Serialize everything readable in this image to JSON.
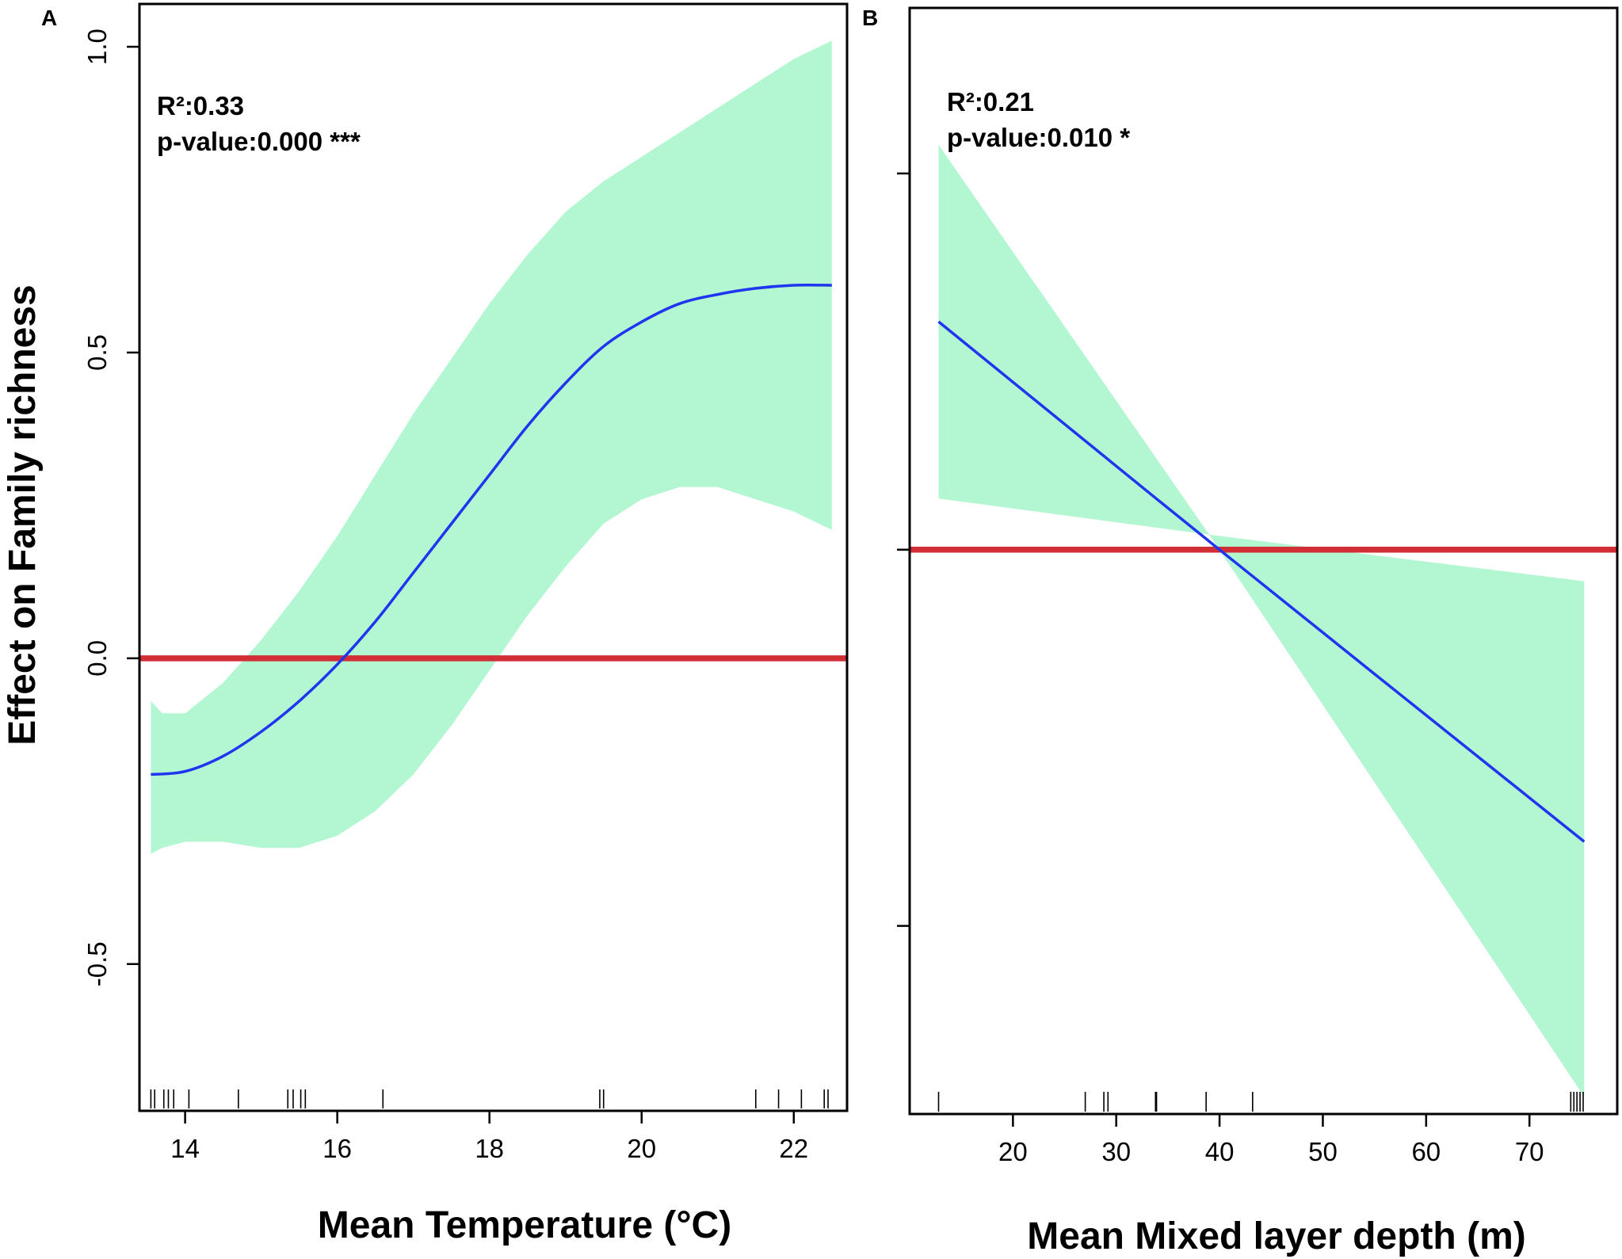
{
  "figure": {
    "ylabel": "Effect on Family richness",
    "colors": {
      "band": "#b3f7d2",
      "fit_line": "#1f35ef",
      "reference_line": "#d12f35",
      "axes": "#000000"
    }
  },
  "chart_data": [
    {
      "type": "line",
      "panel_label": "A",
      "xlabel": "Mean Temperature (°C)",
      "ylabel": "Effect on Family richness",
      "xlim": [
        13.4,
        22.7
      ],
      "ylim": [
        -0.74,
        1.07
      ],
      "x_ticks": [
        14,
        16,
        18,
        20,
        22
      ],
      "x_tick_labels": [
        "14",
        "16",
        "18",
        "20",
        "22"
      ],
      "y_ticks": [
        -0.5,
        0.0,
        0.5,
        1.0
      ],
      "y_tick_labels": [
        "-0.5",
        "0.0",
        "0.5",
        "1.0"
      ],
      "annotation": {
        "r2": "R²:0.33",
        "p": "p-value:0.000 ***"
      },
      "reference_y": 0,
      "series": [
        {
          "name": "fit",
          "x": [
            13.55,
            14.0,
            14.5,
            15.0,
            15.5,
            16.0,
            16.5,
            17.0,
            17.5,
            18.0,
            18.5,
            19.0,
            19.5,
            20.0,
            20.5,
            21.0,
            21.5,
            22.0,
            22.5
          ],
          "values": [
            -0.19,
            -0.185,
            -0.16,
            -0.12,
            -0.07,
            -0.01,
            0.06,
            0.14,
            0.22,
            0.3,
            0.38,
            0.45,
            0.51,
            0.55,
            0.58,
            0.595,
            0.605,
            0.61,
            0.61
          ]
        },
        {
          "name": "upper_ci",
          "x": [
            13.55,
            13.7,
            14.0,
            14.5,
            15.0,
            15.5,
            16.0,
            16.5,
            17.0,
            17.5,
            18.0,
            18.5,
            19.0,
            19.5,
            20.0,
            20.5,
            21.0,
            21.5,
            22.0,
            22.5
          ],
          "values": [
            -0.07,
            -0.09,
            -0.09,
            -0.04,
            0.03,
            0.11,
            0.2,
            0.3,
            0.4,
            0.49,
            0.58,
            0.66,
            0.73,
            0.78,
            0.82,
            0.86,
            0.9,
            0.94,
            0.98,
            1.01
          ]
        },
        {
          "name": "lower_ci",
          "x": [
            13.55,
            13.7,
            14.0,
            14.5,
            15.0,
            15.5,
            16.0,
            16.5,
            17.0,
            17.5,
            18.0,
            18.5,
            19.0,
            19.5,
            20.0,
            20.5,
            21.0,
            21.5,
            22.0,
            22.5
          ],
          "values": [
            -0.32,
            -0.31,
            -0.3,
            -0.3,
            -0.31,
            -0.31,
            -0.29,
            -0.25,
            -0.19,
            -0.11,
            -0.02,
            0.07,
            0.15,
            0.22,
            0.26,
            0.28,
            0.28,
            0.26,
            0.24,
            0.21
          ]
        }
      ],
      "rug": [
        13.55,
        13.6,
        13.72,
        13.78,
        13.85,
        14.05,
        14.7,
        15.35,
        15.42,
        15.52,
        15.58,
        16.6,
        19.45,
        19.5,
        21.5,
        21.8,
        22.1,
        22.4,
        22.45
      ]
    },
    {
      "type": "line",
      "panel_label": "B",
      "xlabel": "Mean Mixed layer depth (m)",
      "ylabel": "",
      "xlim": [
        10.0,
        78.5
      ],
      "ylim": [
        -0.75,
        0.72
      ],
      "x_ticks": [
        20,
        30,
        40,
        50,
        60,
        70
      ],
      "x_tick_labels": [
        "20",
        "30",
        "40",
        "50",
        "60",
        "70"
      ],
      "y_ticks": [
        -0.5,
        0.0,
        0.5
      ],
      "y_tick_labels": [
        "",
        "",
        ""
      ],
      "annotation": {
        "r2": "R²:0.21",
        "p": "p-value:0.010 *"
      },
      "reference_y": 0,
      "series": [
        {
          "name": "fit",
          "x": [
            12.8,
            40.0,
            75.3
          ],
          "values": [
            0.303,
            0.0,
            -0.388
          ]
        },
        {
          "name": "upper_ci",
          "x": [
            12.8,
            39.0,
            75.3
          ],
          "values": [
            0.538,
            0.02,
            -0.042
          ]
        },
        {
          "name": "lower_ci",
          "x": [
            12.8,
            39.0,
            75.3
          ],
          "values": [
            0.068,
            0.02,
            -0.727
          ]
        }
      ],
      "rug": [
        12.8,
        27.0,
        28.8,
        29.2,
        33.8,
        33.9,
        38.7,
        43.2,
        74.0,
        74.3,
        74.6,
        74.9,
        75.2
      ]
    }
  ]
}
